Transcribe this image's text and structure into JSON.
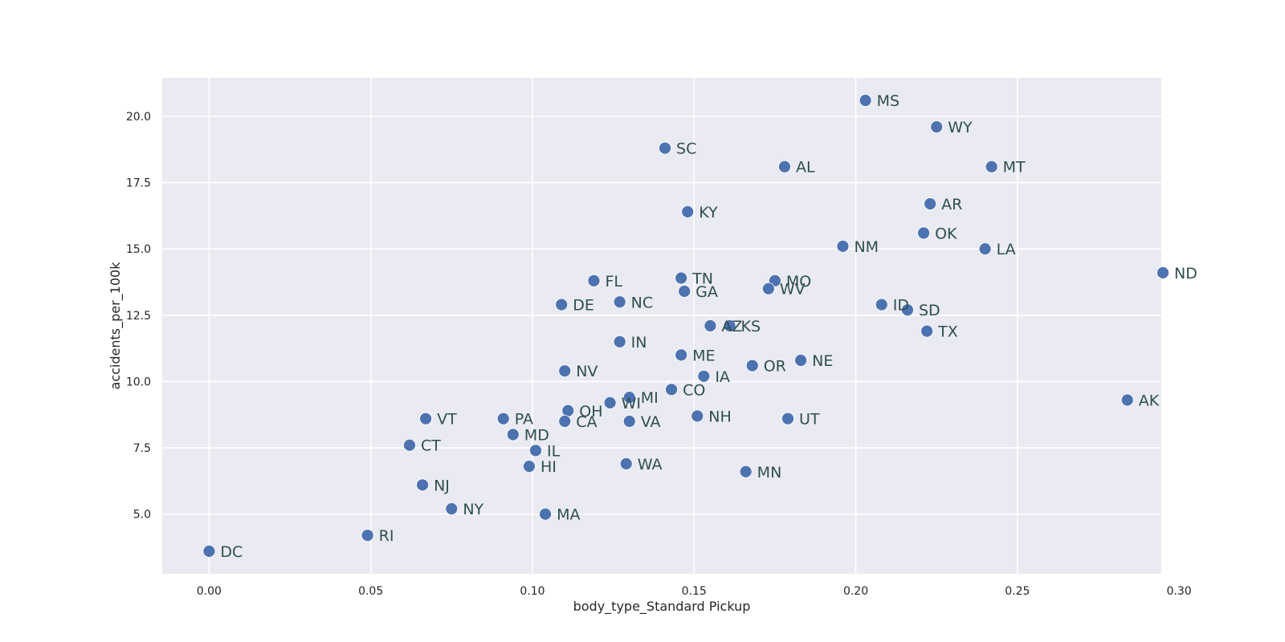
{
  "colors": {
    "plot_background": "#eaeaf2",
    "gridline": "#ffffff",
    "marker": "#4c72b0",
    "point_label": "#2f4f4f",
    "tick_label": "#262626"
  },
  "chart_data": {
    "type": "scatter",
    "title": "",
    "xlabel": "body_type_Standard Pickup",
    "ylabel": "accidents_per_100k",
    "xlim": [
      -0.0145,
      0.2945
    ],
    "ylim": [
      2.75,
      21.45
    ],
    "xticks": [
      0.0,
      0.05,
      0.1,
      0.15,
      0.2,
      0.25,
      0.3
    ],
    "xtick_labels": [
      "0.00",
      "0.05",
      "0.10",
      "0.15",
      "0.20",
      "0.25",
      "0.30"
    ],
    "yticks": [
      5.0,
      7.5,
      10.0,
      12.5,
      15.0,
      17.5,
      20.0
    ],
    "ytick_labels": [
      "5.0",
      "7.5",
      "10.0",
      "12.5",
      "15.0",
      "17.5",
      "20.0"
    ],
    "grid": true,
    "legend": "none",
    "points": [
      {
        "label": "MS",
        "x": 0.203,
        "y": 20.6
      },
      {
        "label": "WY",
        "x": 0.225,
        "y": 19.6
      },
      {
        "label": "SC",
        "x": 0.141,
        "y": 18.8
      },
      {
        "label": "AL",
        "x": 0.178,
        "y": 18.1
      },
      {
        "label": "MT",
        "x": 0.242,
        "y": 18.1
      },
      {
        "label": "AR",
        "x": 0.223,
        "y": 16.7
      },
      {
        "label": "KY",
        "x": 0.148,
        "y": 16.4
      },
      {
        "label": "OK",
        "x": 0.221,
        "y": 15.6
      },
      {
        "label": "NM",
        "x": 0.196,
        "y": 15.1
      },
      {
        "label": "LA",
        "x": 0.24,
        "y": 15.0
      },
      {
        "label": "ND",
        "x": 0.295,
        "y": 14.1
      },
      {
        "label": "TN",
        "x": 0.146,
        "y": 13.9
      },
      {
        "label": "FL",
        "x": 0.119,
        "y": 13.8
      },
      {
        "label": "MO",
        "x": 0.175,
        "y": 13.8
      },
      {
        "label": "WV",
        "x": 0.173,
        "y": 13.5
      },
      {
        "label": "GA",
        "x": 0.147,
        "y": 13.4
      },
      {
        "label": "NC",
        "x": 0.127,
        "y": 13.0
      },
      {
        "label": "DE",
        "x": 0.109,
        "y": 12.9
      },
      {
        "label": "ID",
        "x": 0.208,
        "y": 12.9
      },
      {
        "label": "SD",
        "x": 0.216,
        "y": 12.7
      },
      {
        "label": "AZ",
        "x": 0.155,
        "y": 12.1
      },
      {
        "label": "KS",
        "x": 0.161,
        "y": 12.1
      },
      {
        "label": "TX",
        "x": 0.222,
        "y": 11.9
      },
      {
        "label": "IN",
        "x": 0.127,
        "y": 11.5
      },
      {
        "label": "ME",
        "x": 0.146,
        "y": 11.0
      },
      {
        "label": "NE",
        "x": 0.183,
        "y": 10.8
      },
      {
        "label": "OR",
        "x": 0.168,
        "y": 10.6
      },
      {
        "label": "NV",
        "x": 0.11,
        "y": 10.4
      },
      {
        "label": "IA",
        "x": 0.153,
        "y": 10.2
      },
      {
        "label": "CO",
        "x": 0.143,
        "y": 9.7
      },
      {
        "label": "MI",
        "x": 0.13,
        "y": 9.4
      },
      {
        "label": "AK",
        "x": 0.284,
        "y": 9.3
      },
      {
        "label": "WI",
        "x": 0.124,
        "y": 9.2
      },
      {
        "label": "OH",
        "x": 0.111,
        "y": 8.9
      },
      {
        "label": "NH",
        "x": 0.151,
        "y": 8.7
      },
      {
        "label": "UT",
        "x": 0.179,
        "y": 8.6
      },
      {
        "label": "VT",
        "x": 0.067,
        "y": 8.6
      },
      {
        "label": "PA",
        "x": 0.091,
        "y": 8.6
      },
      {
        "label": "CA",
        "x": 0.11,
        "y": 8.5
      },
      {
        "label": "VA",
        "x": 0.13,
        "y": 8.5
      },
      {
        "label": "MD",
        "x": 0.094,
        "y": 8.0
      },
      {
        "label": "CT",
        "x": 0.062,
        "y": 7.6
      },
      {
        "label": "IL",
        "x": 0.101,
        "y": 7.4
      },
      {
        "label": "WA",
        "x": 0.129,
        "y": 6.9
      },
      {
        "label": "HI",
        "x": 0.099,
        "y": 6.8
      },
      {
        "label": "MN",
        "x": 0.166,
        "y": 6.6
      },
      {
        "label": "NJ",
        "x": 0.066,
        "y": 6.1
      },
      {
        "label": "NY",
        "x": 0.075,
        "y": 5.2
      },
      {
        "label": "MA",
        "x": 0.104,
        "y": 5.0
      },
      {
        "label": "RI",
        "x": 0.049,
        "y": 4.2
      },
      {
        "label": "DC",
        "x": 0.0,
        "y": 3.6
      }
    ]
  }
}
